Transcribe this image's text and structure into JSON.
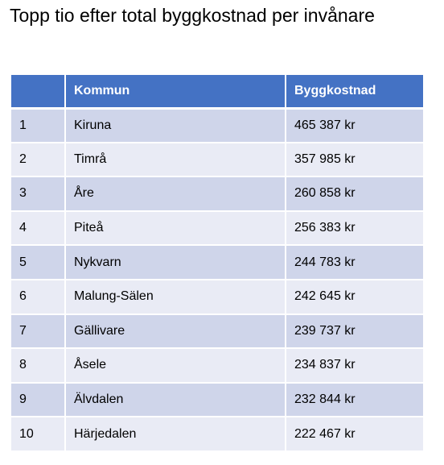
{
  "title": "Topp tio efter total byggkostnad per invånare",
  "table": {
    "headers": [
      "",
      "Kommun",
      "Byggkostnad"
    ],
    "rows": [
      {
        "rank": "1",
        "kommun": "Kiruna",
        "kostnad": "465 387 kr"
      },
      {
        "rank": "2",
        "kommun": "Timrå",
        "kostnad": "357 985 kr"
      },
      {
        "rank": "3",
        "kommun": "Åre",
        "kostnad": "260 858 kr"
      },
      {
        "rank": "4",
        "kommun": "Piteå",
        "kostnad": "256 383 kr"
      },
      {
        "rank": "5",
        "kommun": "Nykvarn",
        "kostnad": "244 783 kr"
      },
      {
        "rank": "6",
        "kommun": "Malung-Sälen",
        "kostnad": "242 645 kr"
      },
      {
        "rank": "7",
        "kommun": "Gällivare",
        "kostnad": "239 737 kr"
      },
      {
        "rank": "8",
        "kommun": "Åsele",
        "kostnad": "234 837 kr"
      },
      {
        "rank": "9",
        "kommun": "Älvdalen",
        "kostnad": "232 844 kr"
      },
      {
        "rank": "10",
        "kommun": "Härjedalen",
        "kostnad": "222 467 kr"
      }
    ]
  },
  "colors": {
    "header_bg": "#4472c4",
    "row_odd_bg": "#cfd5ea",
    "row_even_bg": "#e9ebf5"
  }
}
